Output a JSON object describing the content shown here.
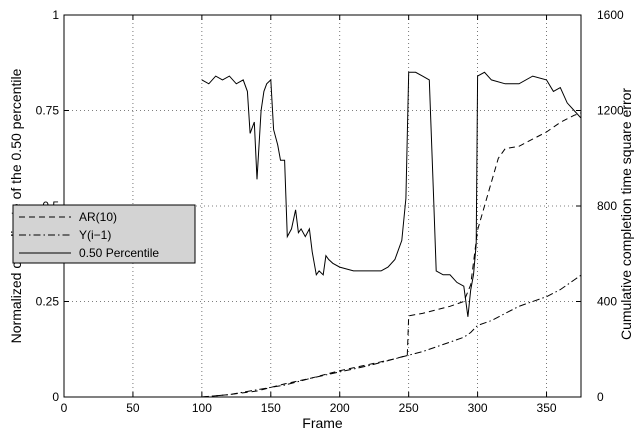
{
  "chart_data": {
    "type": "line",
    "title": "",
    "xlabel": "Frame",
    "ylabel": "Normalized coordinate of the 0.50 percentile",
    "y2label": "Cumulative completion time square error",
    "xlim": [
      0,
      375
    ],
    "ylim": [
      0,
      1
    ],
    "y2lim": [
      0,
      1600
    ],
    "xticks": [
      "0",
      "50",
      "100",
      "150",
      "200",
      "250",
      "300",
      "350"
    ],
    "yticks": [
      "0",
      "0.25",
      "0.5",
      "0.75",
      "1"
    ],
    "y2ticks": [
      "0",
      "400",
      "800",
      "1200",
      "1600"
    ],
    "grid": true,
    "legend_position": "left-middle",
    "series": [
      {
        "name": "AR(10)",
        "axis": "right",
        "style": "dashed",
        "color": "#000000",
        "x": [
          100,
          120,
          140,
          150,
          160,
          180,
          200,
          220,
          240,
          249,
          250,
          260,
          270,
          280,
          290,
          295,
          300,
          310,
          315,
          320,
          330,
          340,
          350,
          360,
          370,
          375
        ],
        "y": [
          0,
          10,
          25,
          40,
          55,
          80,
          110,
          135,
          160,
          175,
          340,
          350,
          365,
          380,
          400,
          470,
          700,
          900,
          1000,
          1040,
          1050,
          1080,
          1110,
          1150,
          1180,
          1190
        ]
      },
      {
        "name": "Y(i−1)",
        "axis": "right",
        "style": "dashdot",
        "color": "#000000",
        "x": [
          100,
          120,
          140,
          150,
          160,
          180,
          200,
          220,
          240,
          250,
          260,
          270,
          280,
          290,
          295,
          300,
          310,
          320,
          330,
          340,
          350,
          360,
          370,
          375
        ],
        "y": [
          0,
          10,
          30,
          40,
          50,
          80,
          105,
          130,
          160,
          175,
          190,
          210,
          230,
          250,
          270,
          300,
          320,
          350,
          380,
          400,
          420,
          450,
          490,
          510
        ]
      },
      {
        "name": "0.50 Percentile",
        "axis": "left",
        "style": "solid",
        "color": "#000000",
        "x": [
          100,
          105,
          110,
          115,
          120,
          125,
          130,
          133,
          135,
          138,
          140,
          143,
          145,
          147,
          150,
          152,
          155,
          157,
          160,
          162,
          165,
          168,
          170,
          172,
          175,
          178,
          180,
          183,
          185,
          188,
          190,
          192,
          195,
          200,
          210,
          220,
          230,
          235,
          240,
          245,
          248,
          250,
          255,
          260,
          265,
          268,
          270,
          275,
          280,
          285,
          290,
          293,
          295,
          297,
          299,
          300,
          305,
          310,
          320,
          330,
          340,
          350,
          355,
          360,
          365,
          370,
          375
        ],
        "y": [
          0.83,
          0.82,
          0.84,
          0.83,
          0.84,
          0.82,
          0.83,
          0.8,
          0.69,
          0.72,
          0.57,
          0.75,
          0.8,
          0.82,
          0.83,
          0.7,
          0.66,
          0.62,
          0.62,
          0.42,
          0.44,
          0.49,
          0.43,
          0.44,
          0.42,
          0.44,
          0.38,
          0.32,
          0.33,
          0.32,
          0.37,
          0.36,
          0.35,
          0.34,
          0.33,
          0.33,
          0.33,
          0.34,
          0.36,
          0.41,
          0.52,
          0.85,
          0.85,
          0.84,
          0.83,
          0.53,
          0.33,
          0.32,
          0.32,
          0.3,
          0.29,
          0.21,
          0.28,
          0.32,
          0.4,
          0.84,
          0.85,
          0.83,
          0.82,
          0.82,
          0.84,
          0.83,
          0.8,
          0.81,
          0.77,
          0.75,
          0.73
        ]
      }
    ]
  }
}
